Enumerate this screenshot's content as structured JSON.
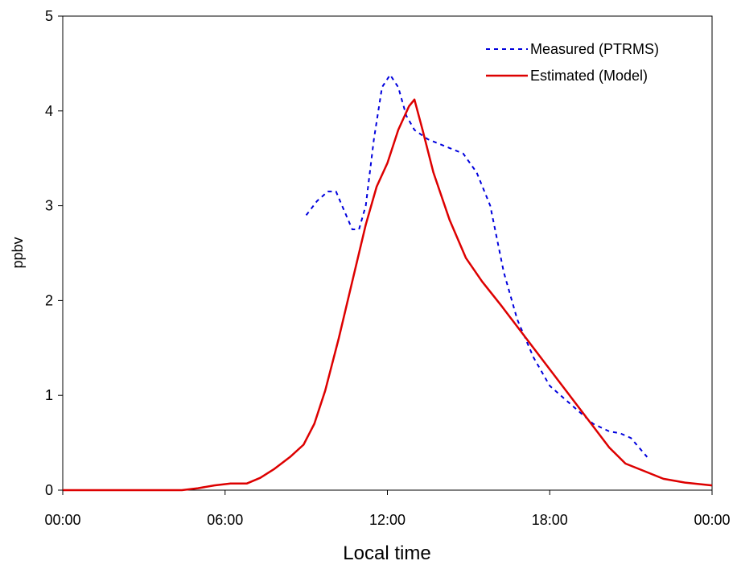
{
  "chart_data": {
    "type": "line",
    "xlabel": "Local time",
    "ylabel": "ppbv",
    "xlim": [
      0,
      24
    ],
    "ylim": [
      0,
      5
    ],
    "x_ticks": [
      {
        "value": 0,
        "label": "00:00"
      },
      {
        "value": 6,
        "label": "06:00"
      },
      {
        "value": 12,
        "label": "12:00"
      },
      {
        "value": 18,
        "label": "18:00"
      },
      {
        "value": 24,
        "label": "00:00"
      }
    ],
    "y_ticks": [
      {
        "value": 0,
        "label": "0"
      },
      {
        "value": 1,
        "label": "1"
      },
      {
        "value": 2,
        "label": "2"
      },
      {
        "value": 3,
        "label": "3"
      },
      {
        "value": 4,
        "label": "4"
      },
      {
        "value": 5,
        "label": "5"
      }
    ],
    "grid": false,
    "legend_position": "top-right",
    "series": [
      {
        "name": "Measured (PTRMS)",
        "color": "#0000dd",
        "style": "dotted",
        "points": [
          [
            9.0,
            2.9
          ],
          [
            9.4,
            3.05
          ],
          [
            9.8,
            3.15
          ],
          [
            10.1,
            3.15
          ],
          [
            10.4,
            2.95
          ],
          [
            10.7,
            2.75
          ],
          [
            10.95,
            2.75
          ],
          [
            11.2,
            3.0
          ],
          [
            11.5,
            3.7
          ],
          [
            11.8,
            4.25
          ],
          [
            12.1,
            4.38
          ],
          [
            12.4,
            4.25
          ],
          [
            12.7,
            3.95
          ],
          [
            13.0,
            3.8
          ],
          [
            13.5,
            3.7
          ],
          [
            14.2,
            3.62
          ],
          [
            14.8,
            3.55
          ],
          [
            15.3,
            3.35
          ],
          [
            15.8,
            3.0
          ],
          [
            16.3,
            2.3
          ],
          [
            16.8,
            1.8
          ],
          [
            17.4,
            1.4
          ],
          [
            18.0,
            1.1
          ],
          [
            18.8,
            0.9
          ],
          [
            19.6,
            0.7
          ],
          [
            20.2,
            0.62
          ],
          [
            20.6,
            0.6
          ],
          [
            21.0,
            0.55
          ],
          [
            21.3,
            0.45
          ],
          [
            21.6,
            0.35
          ]
        ]
      },
      {
        "name": "Estimated (Model)",
        "color": "#dd0000",
        "style": "solid",
        "points": [
          [
            0.0,
            0.0
          ],
          [
            4.4,
            0.0
          ],
          [
            5.0,
            0.02
          ],
          [
            5.6,
            0.05
          ],
          [
            6.2,
            0.07
          ],
          [
            6.8,
            0.07
          ],
          [
            7.3,
            0.13
          ],
          [
            7.8,
            0.22
          ],
          [
            8.4,
            0.35
          ],
          [
            8.9,
            0.48
          ],
          [
            9.3,
            0.7
          ],
          [
            9.7,
            1.05
          ],
          [
            10.2,
            1.6
          ],
          [
            10.7,
            2.2
          ],
          [
            11.2,
            2.8
          ],
          [
            11.6,
            3.2
          ],
          [
            12.0,
            3.45
          ],
          [
            12.4,
            3.8
          ],
          [
            12.8,
            4.05
          ],
          [
            13.0,
            4.12
          ],
          [
            13.3,
            3.8
          ],
          [
            13.7,
            3.35
          ],
          [
            14.3,
            2.85
          ],
          [
            14.9,
            2.45
          ],
          [
            15.5,
            2.2
          ],
          [
            16.2,
            1.95
          ],
          [
            17.0,
            1.65
          ],
          [
            17.8,
            1.35
          ],
          [
            18.6,
            1.05
          ],
          [
            19.4,
            0.75
          ],
          [
            20.2,
            0.45
          ],
          [
            20.8,
            0.28
          ],
          [
            21.5,
            0.2
          ],
          [
            22.2,
            0.12
          ],
          [
            23.0,
            0.08
          ],
          [
            24.0,
            0.05
          ]
        ]
      }
    ]
  }
}
